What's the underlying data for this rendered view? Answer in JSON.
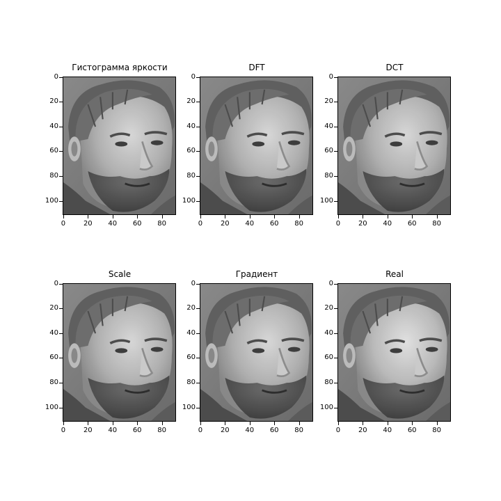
{
  "figure": {
    "panels": [
      {
        "title": "Гистограмма яркости",
        "variant": "reconstruction"
      },
      {
        "title": "DFT",
        "variant": "reconstruction"
      },
      {
        "title": "DCT",
        "variant": "reconstruction"
      },
      {
        "title": "Scale",
        "variant": "reconstruction"
      },
      {
        "title": "Градиент",
        "variant": "reconstruction"
      },
      {
        "title": "Real",
        "variant": "real"
      }
    ],
    "x_ticks": [
      "0",
      "20",
      "40",
      "60",
      "80"
    ],
    "y_ticks": [
      "0",
      "20",
      "40",
      "60",
      "80",
      "100"
    ],
    "image_description_icon": "grayscale-face-portrait"
  }
}
